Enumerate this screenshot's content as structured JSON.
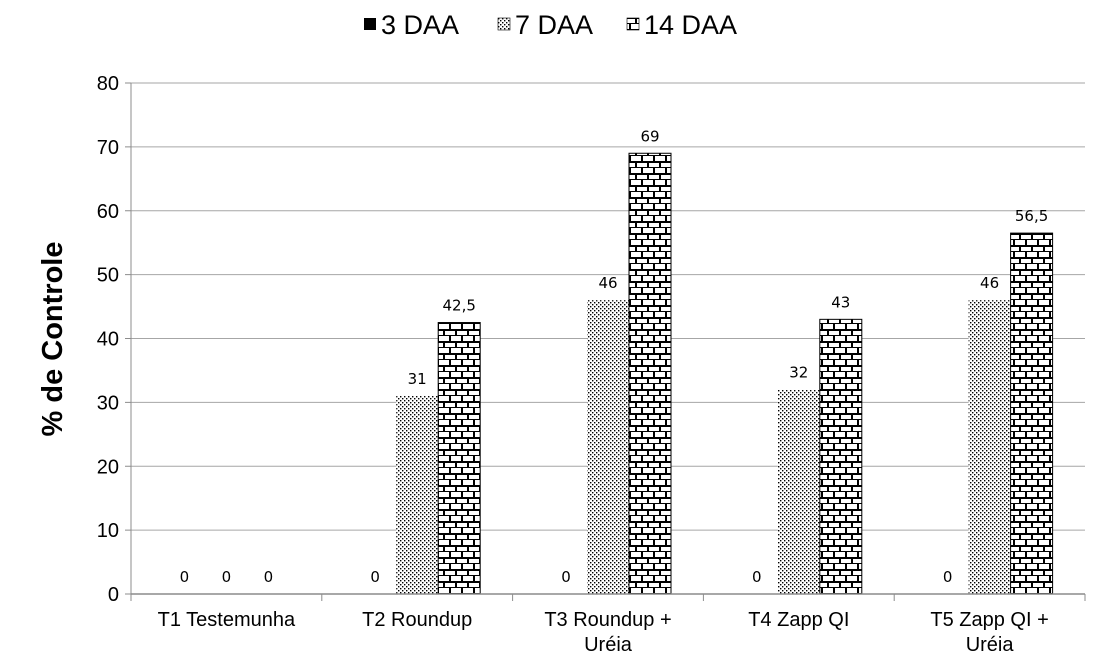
{
  "chart_data": {
    "type": "bar",
    "categories": [
      "T1 Testemunha",
      "T2 Roundup",
      "T3 Roundup + Uréia",
      "T4 Zapp QI",
      "T5 Zapp QI + Uréia"
    ],
    "category_label_lines": [
      [
        "T1 Testemunha"
      ],
      [
        "T2 Roundup"
      ],
      [
        "T3 Roundup +",
        "Uréia"
      ],
      [
        "T4 Zapp QI"
      ],
      [
        "T5 Zapp QI +",
        "Uréia"
      ]
    ],
    "series": [
      {
        "name": "3 DAA",
        "values": [
          0,
          0,
          0,
          0,
          0
        ],
        "labels": [
          "0",
          "0",
          "0",
          "0",
          "0"
        ],
        "fill": "solid-black"
      },
      {
        "name": "7 DAA",
        "values": [
          0,
          31,
          46,
          32,
          46
        ],
        "labels": [
          "0",
          "31",
          "46",
          "32",
          "46"
        ],
        "fill": "dots"
      },
      {
        "name": "14 DAA",
        "values": [
          0,
          42.5,
          69,
          43,
          56.5
        ],
        "labels": [
          "0",
          "42,5",
          "69",
          "43",
          "56,5"
        ],
        "fill": "brick"
      }
    ],
    "ylabel": "% de Controle",
    "xlabel": "",
    "ylim": [
      0,
      80
    ],
    "yticks": [
      "0",
      "10",
      "20",
      "30",
      "40",
      "50",
      "60",
      "70",
      "80"
    ],
    "grid": true,
    "legend_position": "top-center",
    "colors": {
      "bar_fill": "#000000",
      "background": "#ffffff",
      "grid": "#a6a6a6",
      "axis": "#8c8c8c"
    }
  }
}
